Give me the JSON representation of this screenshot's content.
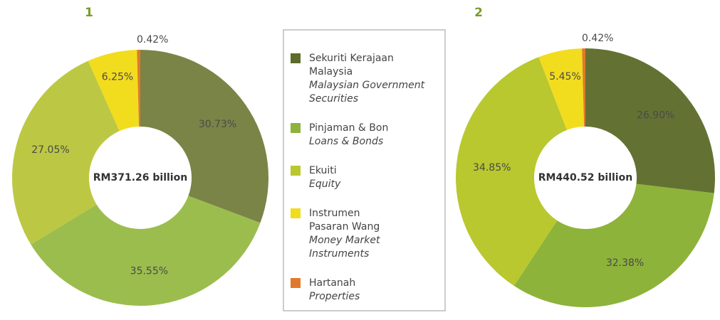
{
  "legend": {
    "items": [
      {
        "name_lines": [
          "Sekuriti Kerajaan",
          "Malaysia"
        ],
        "translation_lines": [
          "Malaysian Government",
          "Securities"
        ],
        "color": "#5d6b2b"
      },
      {
        "name_lines": [
          "Pinjaman & Bon"
        ],
        "translation_lines": [
          "Loans & Bonds"
        ],
        "color": "#8cb33b"
      },
      {
        "name_lines": [
          "Ekuiti"
        ],
        "translation_lines": [
          "Equity"
        ],
        "color": "#b8c82e"
      },
      {
        "name_lines": [
          "Instrumen",
          "Pasaran Wang"
        ],
        "translation_lines": [
          "Money Market",
          "Instruments"
        ],
        "color": "#f2dc1e"
      },
      {
        "name_lines": [
          "Hartanah"
        ],
        "translation_lines": [
          "Properties"
        ],
        "color": "#e07a2a"
      }
    ]
  },
  "chart_data": [
    {
      "type": "pie",
      "title": "1",
      "center_label": "RM371.26 billion",
      "values": [
        30.73,
        35.55,
        27.05,
        6.25,
        0.42
      ],
      "value_labels": [
        "30.73%",
        "35.55%",
        "27.05%",
        "6.25%",
        "0.42%"
      ],
      "colors": [
        "#7a8446",
        "#9bbd4e",
        "#bcc843",
        "#f2dc1e",
        "#e07a2a"
      ]
    },
    {
      "type": "pie",
      "title": "2",
      "center_label": "RM440.52 billion",
      "values": [
        26.9,
        32.38,
        34.85,
        5.45,
        0.42
      ],
      "value_labels": [
        "26.90%",
        "32.38%",
        "34.85%",
        "5.45%",
        "0.42%"
      ],
      "colors": [
        "#637233",
        "#8db33a",
        "#b8c82e",
        "#f2dc1e",
        "#e07a2a"
      ]
    }
  ]
}
